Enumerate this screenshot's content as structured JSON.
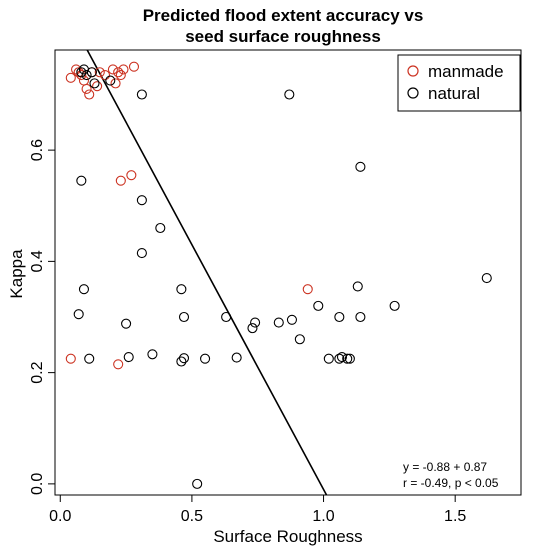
{
  "chart_data": {
    "type": "scatter",
    "title_line1": "Predicted flood extent accuracy vs",
    "title_line2": "seed surface roughness",
    "xlabel": "Surface Roughness",
    "ylabel": "Kappa",
    "xlim": [
      -0.02,
      1.75
    ],
    "ylim": [
      -0.02,
      0.78
    ],
    "x_ticks": [
      0.0,
      0.5,
      1.0,
      1.5
    ],
    "x_tick_labels": [
      "0.0",
      "0.5",
      "1.0",
      "1.5"
    ],
    "y_ticks": [
      0.0,
      0.2,
      0.4,
      0.6
    ],
    "y_tick_labels": [
      "0.0",
      "0.2",
      "0.4",
      "0.6"
    ],
    "grid": false,
    "legend_position": "top-right",
    "series": [
      {
        "name": "manmade",
        "color": "#cc3322",
        "points": [
          [
            0.04,
            0.73
          ],
          [
            0.06,
            0.745
          ],
          [
            0.07,
            0.74
          ],
          [
            0.08,
            0.735
          ],
          [
            0.09,
            0.725
          ],
          [
            0.1,
            0.71
          ],
          [
            0.11,
            0.7
          ],
          [
            0.12,
            0.74
          ],
          [
            0.14,
            0.715
          ],
          [
            0.15,
            0.74
          ],
          [
            0.17,
            0.735
          ],
          [
            0.2,
            0.745
          ],
          [
            0.21,
            0.72
          ],
          [
            0.22,
            0.74
          ],
          [
            0.23,
            0.735
          ],
          [
            0.24,
            0.745
          ],
          [
            0.28,
            0.75
          ],
          [
            0.23,
            0.545
          ],
          [
            0.27,
            0.555
          ],
          [
            0.94,
            0.35
          ],
          [
            0.04,
            0.225
          ],
          [
            0.22,
            0.215
          ]
        ]
      },
      {
        "name": "natural",
        "color": "#000000",
        "points": [
          [
            0.08,
            0.74
          ],
          [
            0.09,
            0.745
          ],
          [
            0.1,
            0.735
          ],
          [
            0.12,
            0.74
          ],
          [
            0.13,
            0.72
          ],
          [
            0.19,
            0.725
          ],
          [
            0.31,
            0.7
          ],
          [
            0.87,
            0.7
          ],
          [
            1.14,
            0.57
          ],
          [
            0.08,
            0.545
          ],
          [
            0.31,
            0.51
          ],
          [
            0.38,
            0.46
          ],
          [
            0.31,
            0.415
          ],
          [
            1.62,
            0.37
          ],
          [
            0.09,
            0.35
          ],
          [
            0.46,
            0.35
          ],
          [
            1.13,
            0.355
          ],
          [
            1.27,
            0.32
          ],
          [
            0.98,
            0.32
          ],
          [
            0.07,
            0.305
          ],
          [
            0.47,
            0.3
          ],
          [
            0.63,
            0.3
          ],
          [
            0.74,
            0.29
          ],
          [
            0.83,
            0.29
          ],
          [
            0.88,
            0.295
          ],
          [
            1.06,
            0.3
          ],
          [
            1.14,
            0.3
          ],
          [
            0.25,
            0.288
          ],
          [
            0.73,
            0.28
          ],
          [
            0.91,
            0.26
          ],
          [
            0.11,
            0.225
          ],
          [
            0.26,
            0.228
          ],
          [
            0.35,
            0.233
          ],
          [
            0.46,
            0.22
          ],
          [
            0.47,
            0.226
          ],
          [
            0.55,
            0.225
          ],
          [
            0.67,
            0.227
          ],
          [
            1.02,
            0.225
          ],
          [
            1.06,
            0.225
          ],
          [
            1.07,
            0.228
          ],
          [
            1.09,
            0.225
          ],
          [
            1.1,
            0.225
          ],
          [
            0.52,
            0.0
          ]
        ]
      }
    ],
    "fit_line": {
      "intercept": 0.87,
      "slope": -0.88
    },
    "annotations": [
      "y = -0.88 + 0.87",
      "r = -0.49, p < 0.05"
    ]
  }
}
